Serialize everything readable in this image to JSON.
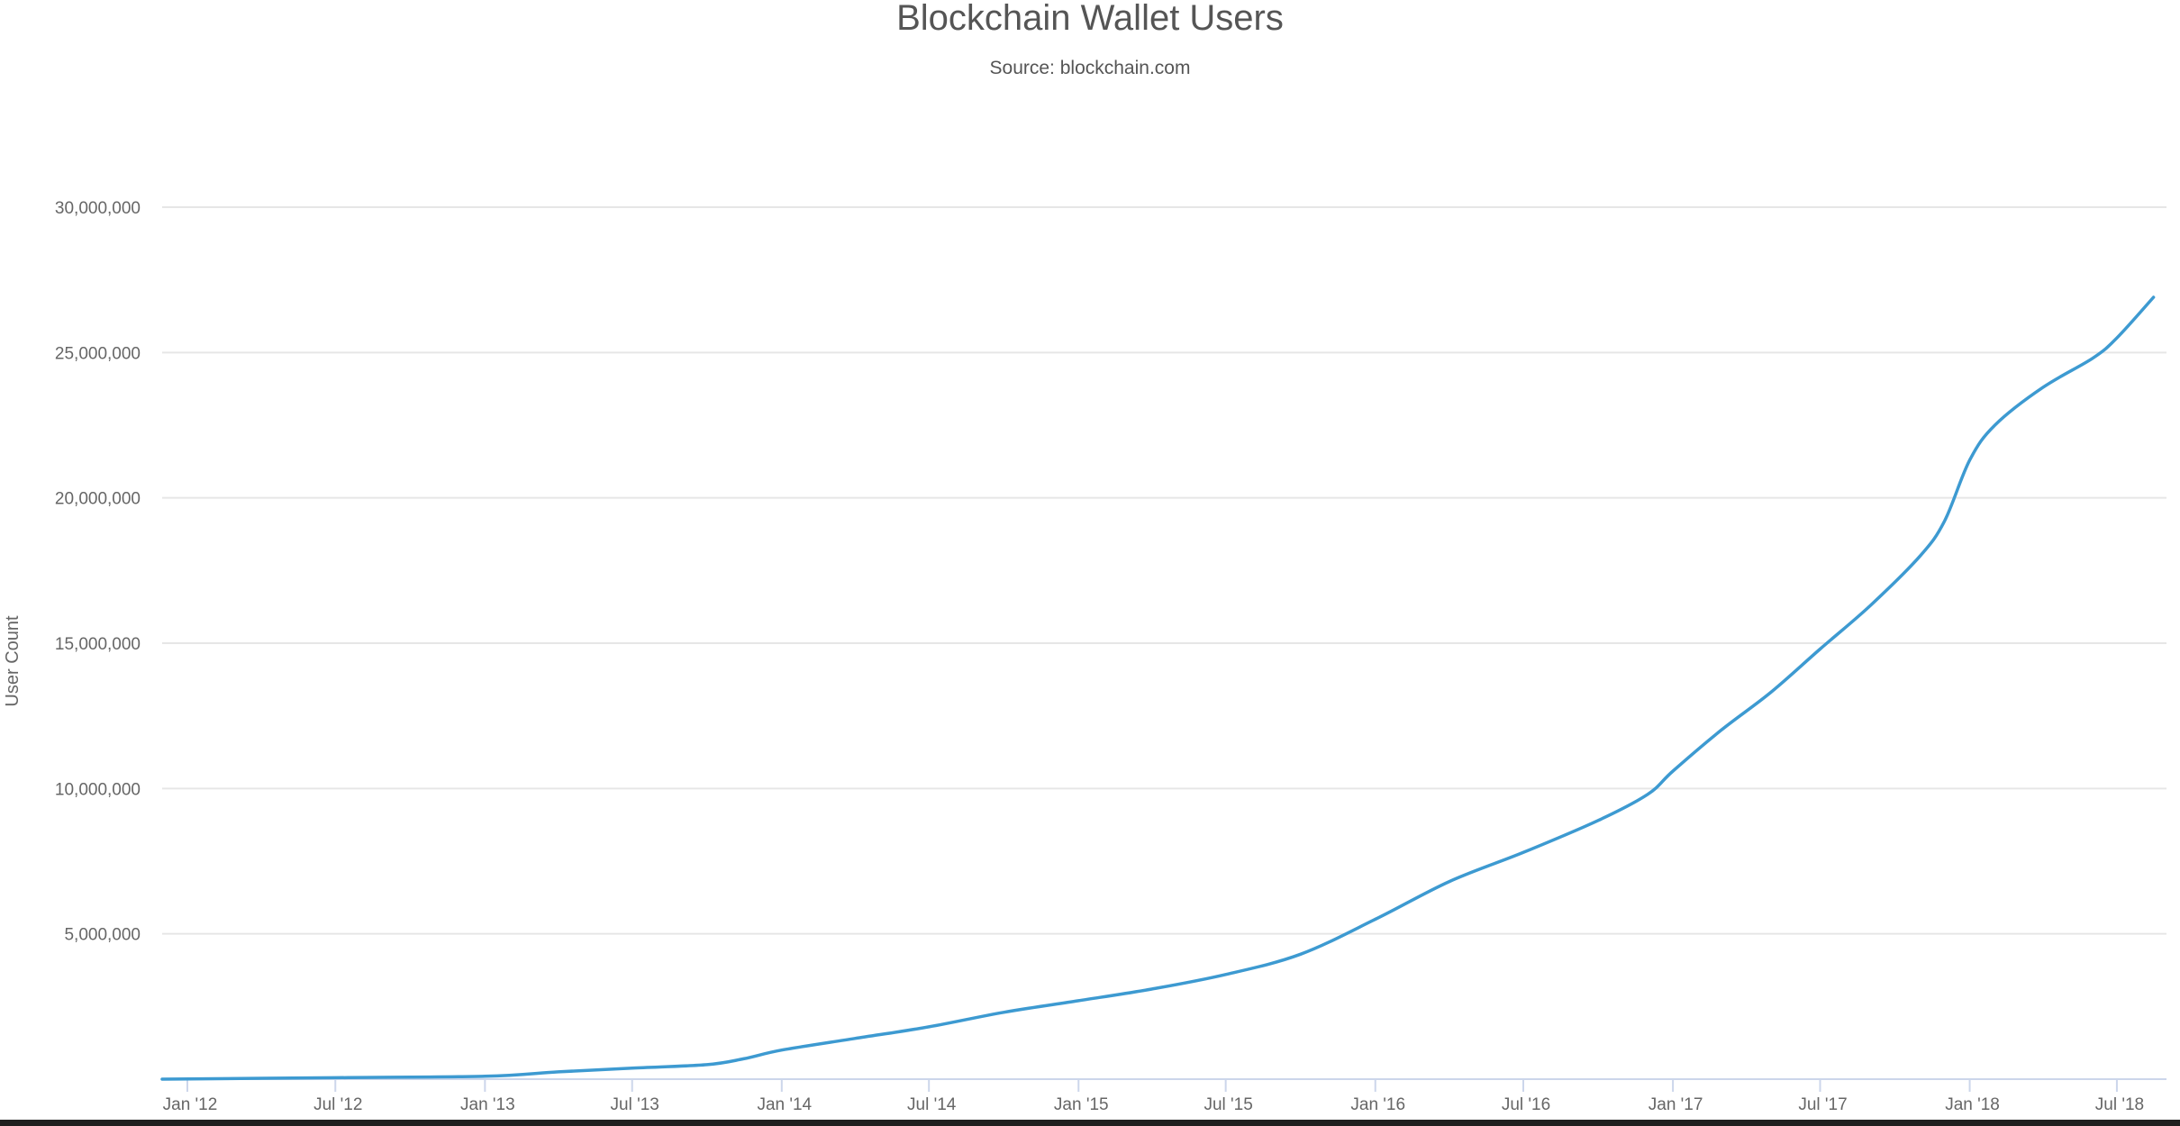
{
  "chart_data": {
    "type": "line",
    "title": "Blockchain Wallet Users",
    "subtitle": "Source: blockchain.com",
    "xlabel": "",
    "ylabel": "User Count",
    "ylim": [
      0,
      30000000
    ],
    "yticks": [
      5000000,
      10000000,
      15000000,
      20000000,
      25000000,
      30000000
    ],
    "ytick_labels": [
      "5,000,000",
      "10,000,000",
      "15,000,000",
      "20,000,000",
      "25,000,000",
      "30,000,000"
    ],
    "xlim": [
      "2011-12-01",
      "2018-08-31"
    ],
    "xticks": [
      "2012-01-01",
      "2012-07-01",
      "2013-01-01",
      "2013-07-01",
      "2014-01-01",
      "2014-07-01",
      "2015-01-01",
      "2015-07-01",
      "2016-01-01",
      "2016-07-01",
      "2017-01-01",
      "2017-07-01",
      "2018-01-01",
      "2018-07-01"
    ],
    "xtick_labels": [
      "Jan '12",
      "Jul '12",
      "Jan '13",
      "Jul '13",
      "Jan '14",
      "Jul '14",
      "Jan '15",
      "Jul '15",
      "Jan '16",
      "Jul '16",
      "Jan '17",
      "Jul '17",
      "Jan '18",
      "Jul '18"
    ],
    "grid": true,
    "legend": "none",
    "series": [
      {
        "color": "#3d9ad1",
        "x": [
          "2011-12-01",
          "2012-07-01",
          "2013-01-01",
          "2013-04-01",
          "2013-07-01",
          "2013-10-01",
          "2013-11-15",
          "2014-01-01",
          "2014-04-01",
          "2014-07-01",
          "2014-10-01",
          "2015-01-01",
          "2015-04-01",
          "2015-07-01",
          "2015-10-01",
          "2016-01-01",
          "2016-04-01",
          "2016-07-01",
          "2016-10-01",
          "2016-12-01",
          "2017-01-01",
          "2017-03-01",
          "2017-05-01",
          "2017-07-01",
          "2017-09-01",
          "2017-11-01",
          "2017-12-01",
          "2018-01-01",
          "2018-02-01",
          "2018-04-01",
          "2018-06-01",
          "2018-07-01",
          "2018-08-15"
        ],
        "y": [
          0,
          50000,
          100000,
          250000,
          380000,
          500000,
          700000,
          1000000,
          1400000,
          1800000,
          2300000,
          2700000,
          3100000,
          3600000,
          4300000,
          5500000,
          6800000,
          7800000,
          8900000,
          9800000,
          10600000,
          12000000,
          13300000,
          14800000,
          16300000,
          18000000,
          19200000,
          21300000,
          22500000,
          23800000,
          24800000,
          25500000,
          26900000
        ]
      }
    ]
  }
}
